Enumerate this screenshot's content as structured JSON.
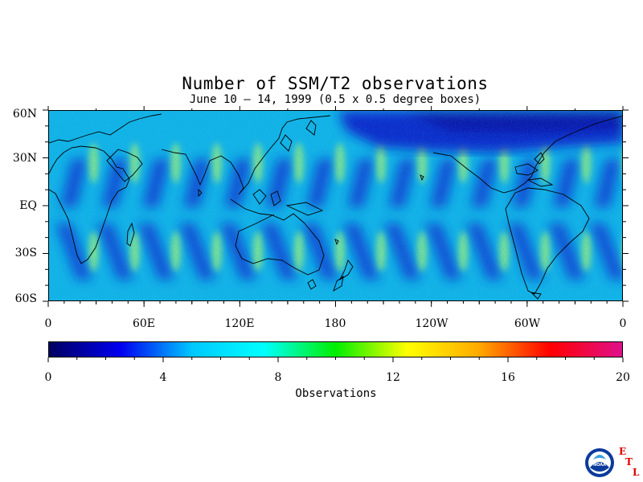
{
  "title": "Number of SSM/T2 observations",
  "subtitle": "June 10 – 14, 1999 (0.5 x 0.5 degree boxes)",
  "latitude_labels": [
    "60N",
    "30N",
    "EQ",
    "30S",
    "60S"
  ],
  "longitude_labels": [
    "0",
    "60E",
    "120E",
    "180",
    "120W",
    "60W",
    "0"
  ],
  "colorbar": {
    "ticks": [
      "0",
      "4",
      "8",
      "12",
      "16",
      "20"
    ],
    "label": "Observations",
    "range": [
      0,
      20
    ],
    "colors": [
      "#000060",
      "#0000f0",
      "#00c8ff",
      "#00ffff",
      "#00ee00",
      "#ffff00",
      "#ffaa00",
      "#ff0000",
      "#e0108c"
    ]
  },
  "map": {
    "lat_range": [
      -60,
      60
    ],
    "lon_range": [
      0,
      360
    ],
    "background_color": "#14b4e6",
    "low_count_color": "#0a2ccc",
    "high_count_color": "#9cf07c"
  },
  "logo": {
    "letters": [
      "E",
      "T",
      "L"
    ],
    "letter_color": "#e00000",
    "icon": "noaa-logo-icon"
  }
}
